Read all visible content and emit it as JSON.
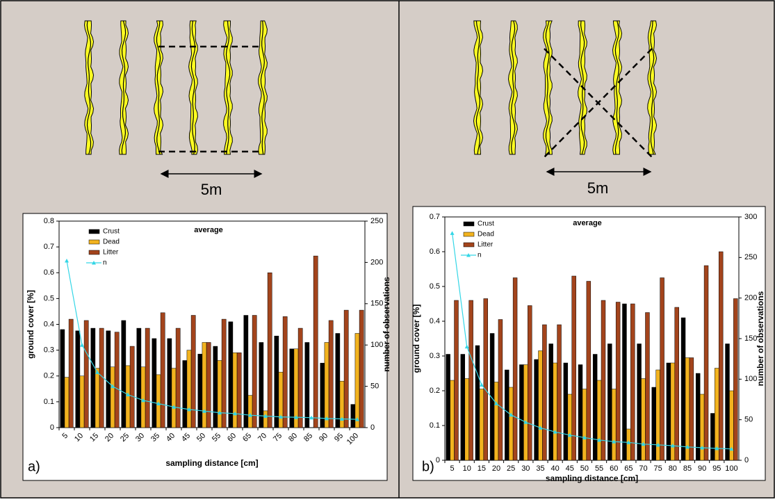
{
  "chart_data": [
    {
      "type": "bar",
      "title": "average",
      "x_label": "sampling distance [cm]",
      "y_label": "ground cover [%]",
      "y2_label": "number of observations",
      "categories": [
        "5",
        "10",
        "15",
        "20",
        "25",
        "30",
        "35",
        "40",
        "45",
        "50",
        "55",
        "60",
        "65",
        "70",
        "75",
        "80",
        "85",
        "90",
        "95",
        "100"
      ],
      "series": [
        {
          "name": "Crust",
          "color": "#000000",
          "values": [
            0.38,
            0.375,
            0.385,
            0.375,
            0.415,
            0.385,
            0.345,
            0.345,
            0.26,
            0.285,
            0.315,
            0.41,
            0.435,
            0.33,
            0.355,
            0.305,
            0.33,
            0.25,
            0.365,
            0.09
          ]
        },
        {
          "name": "Dead",
          "color": "#f2b31f",
          "values": [
            0.195,
            0.2,
            0.23,
            0.235,
            0.24,
            0.235,
            0.205,
            0.23,
            0.3,
            0.33,
            0.26,
            0.29,
            0.125,
            0.065,
            0.215,
            0.305,
            0,
            0.33,
            0.18,
            0.365
          ]
        },
        {
          "name": "Litter",
          "color": "#a3441c",
          "values": [
            0.42,
            0.415,
            0.385,
            0.37,
            0.315,
            0.385,
            0.445,
            0.385,
            0.435,
            0.33,
            0.42,
            0.29,
            0.435,
            0.6,
            0.43,
            0.385,
            0.665,
            0.415,
            0.455,
            0.455
          ]
        },
        {
          "name": "n",
          "color": "#33d6e6",
          "type": "line",
          "axis": "y2",
          "values": [
            202,
            100,
            67,
            50,
            40,
            33,
            29,
            25,
            22,
            20,
            18,
            17,
            15,
            14,
            13,
            12.5,
            12,
            11,
            10.5,
            10
          ]
        }
      ],
      "ylim": [
        0,
        0.8
      ],
      "yticks": [
        0,
        0.1,
        0.2,
        0.3,
        0.4,
        0.5,
        0.6,
        0.7,
        0.8
      ],
      "y2lim": [
        0,
        250
      ],
      "y2ticks": [
        0,
        50,
        100,
        150,
        200,
        250
      ]
    },
    {
      "type": "bar",
      "title": "average",
      "x_label": "sampling distance [cm]",
      "y_label": "ground cover [%]",
      "y2_label": "number of observations",
      "categories": [
        "5",
        "10",
        "15",
        "20",
        "25",
        "30",
        "35",
        "40",
        "45",
        "50",
        "55",
        "60",
        "65",
        "70",
        "75",
        "80",
        "85",
        "90",
        "95",
        "100"
      ],
      "series": [
        {
          "name": "Crust",
          "color": "#000000",
          "values": [
            0.305,
            0.305,
            0.33,
            0.365,
            0.26,
            0.275,
            0.29,
            0.335,
            0.28,
            0.275,
            0.305,
            0.335,
            0.45,
            0.335,
            0.21,
            0.28,
            0.41,
            0.25,
            0.135,
            0.335
          ]
        },
        {
          "name": "Dead",
          "color": "#f2b31f",
          "values": [
            0.23,
            0.235,
            0.205,
            0.225,
            0.21,
            0.275,
            0.315,
            0.28,
            0.19,
            0.205,
            0.23,
            0.205,
            0.09,
            0.235,
            0.26,
            0.28,
            0.295,
            0.19,
            0.265,
            0.2
          ]
        },
        {
          "name": "Litter",
          "color": "#a3441c",
          "values": [
            0.46,
            0.46,
            0.465,
            0.405,
            0.525,
            0.445,
            0.39,
            0.39,
            0.53,
            0.515,
            0.46,
            0.455,
            0.45,
            0.425,
            0.525,
            0.44,
            0.295,
            0.56,
            0.6,
            0.465
          ]
        },
        {
          "name": "n",
          "color": "#33d6e6",
          "type": "line",
          "axis": "y2",
          "values": [
            280,
            140,
            93,
            70,
            56,
            47,
            40,
            35,
            31,
            28,
            25,
            23,
            22,
            20,
            19,
            18,
            16.5,
            15.5,
            14.7,
            14
          ]
        }
      ],
      "ylim": [
        0,
        0.7
      ],
      "yticks": [
        0,
        0.1,
        0.2,
        0.3,
        0.4,
        0.5,
        0.6,
        0.7
      ],
      "y2lim": [
        0,
        300
      ],
      "y2ticks": [
        0,
        50,
        100,
        150,
        200,
        250,
        300
      ]
    }
  ],
  "diagrams": [
    {
      "scale_label": "5m",
      "panel_label": "a)"
    },
    {
      "scale_label": "5m",
      "panel_label": "b)"
    }
  ]
}
